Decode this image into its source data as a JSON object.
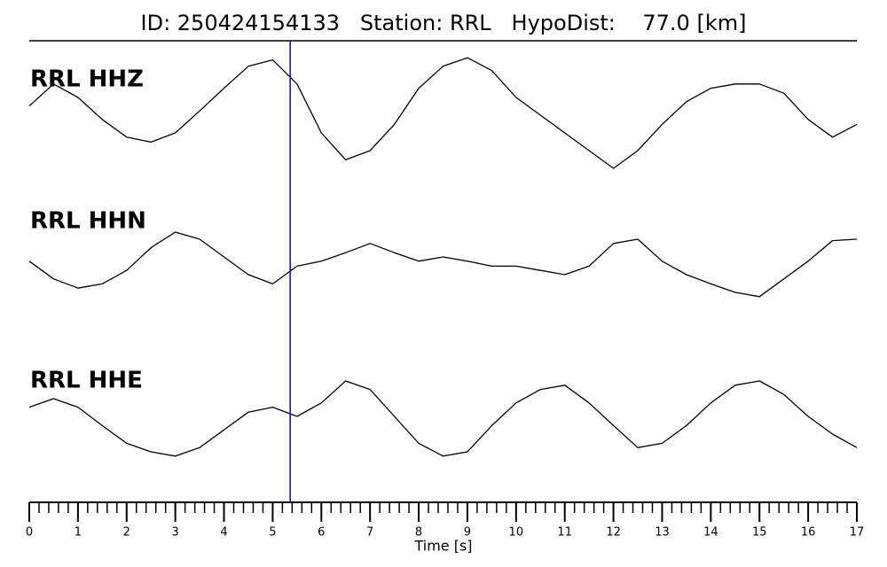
{
  "chart_data": {
    "type": "line",
    "title": "ID: 250424154133   Station: RRL   HypoDist:    77.0 [km]",
    "xlabel": "Time [s]",
    "xlim": [
      0,
      17
    ],
    "xticks": [
      0,
      1,
      2,
      3,
      4,
      5,
      6,
      7,
      8,
      9,
      10,
      11,
      12,
      13,
      14,
      15,
      16,
      17
    ],
    "xminor_step": 0.2,
    "ylim": [
      -1,
      1
    ],
    "label_color": "#4c9a00",
    "pick_time": 5.36,
    "pick_color": "#0000ff",
    "x": [
      0,
      0.5,
      1,
      1.5,
      2,
      2.5,
      3,
      3.5,
      4,
      4.5,
      5,
      5.5,
      6,
      6.5,
      7,
      7.5,
      8,
      8.5,
      9,
      9.5,
      10,
      10.5,
      11,
      11.5,
      12,
      12.5,
      13,
      13.5,
      14,
      14.5,
      15,
      15.5,
      16,
      16.5,
      17
    ],
    "series": [
      {
        "name": "RRL HHZ",
        "color": "#000000",
        "values": [
          0.13,
          0.44,
          0.25,
          -0.06,
          -0.31,
          -0.38,
          -0.25,
          0.06,
          0.38,
          0.69,
          0.78,
          0.44,
          -0.25,
          -0.63,
          -0.5,
          -0.13,
          0.38,
          0.69,
          0.81,
          0.63,
          0.25,
          0,
          -0.25,
          -0.5,
          -0.75,
          -0.5,
          -0.13,
          0.19,
          0.38,
          0.44,
          0.44,
          0.31,
          -0.06,
          -0.31,
          -0.13
        ]
      },
      {
        "name": "RRL HHN",
        "color": "#000000",
        "values": [
          -0.06,
          -0.31,
          -0.44,
          -0.38,
          -0.19,
          0.13,
          0.35,
          0.25,
          0,
          -0.25,
          -0.38,
          -0.13,
          -0.06,
          0.06,
          0.19,
          0.06,
          -0.06,
          0,
          -0.06,
          -0.13,
          -0.13,
          -0.19,
          -0.25,
          -0.13,
          0.19,
          0.25,
          -0.06,
          -0.25,
          -0.38,
          -0.5,
          -0.56,
          -0.31,
          -0.06,
          0.23,
          0.25
        ]
      },
      {
        "name": "RRL HHE",
        "color": "#000000",
        "values": [
          0.13,
          0.25,
          0.13,
          -0.13,
          -0.38,
          -0.5,
          -0.56,
          -0.44,
          -0.19,
          0.06,
          0.13,
          0,
          0.19,
          0.5,
          0.38,
          0,
          -0.38,
          -0.56,
          -0.5,
          -0.13,
          0.19,
          0.38,
          0.44,
          0.19,
          -0.13,
          -0.44,
          -0.38,
          -0.13,
          0.19,
          0.44,
          0.5,
          0.31,
          0,
          -0.25,
          -0.44
        ]
      }
    ]
  }
}
